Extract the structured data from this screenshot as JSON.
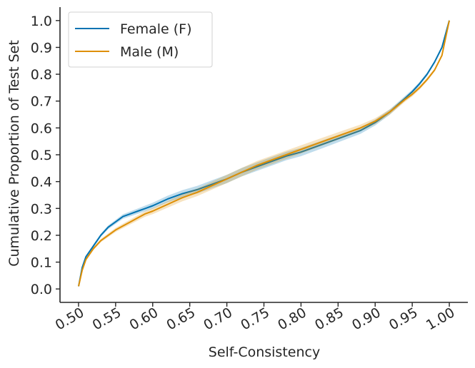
{
  "chart_data": {
    "type": "line",
    "title": "",
    "xlabel": "Self-Consistency",
    "ylabel": "Cumulative Proportion of Test Set",
    "xlim": [
      0.475,
      1.025
    ],
    "ylim": [
      -0.05,
      1.05
    ],
    "xticks": [
      0.5,
      0.55,
      0.6,
      0.65,
      0.7,
      0.75,
      0.8,
      0.85,
      0.9,
      0.95,
      1.0
    ],
    "xtick_labels": [
      "0.50",
      "0.55",
      "0.60",
      "0.65",
      "0.70",
      "0.75",
      "0.80",
      "0.85",
      "0.90",
      "0.95",
      "1.00"
    ],
    "yticks": [
      0.0,
      0.1,
      0.2,
      0.3,
      0.4,
      0.5,
      0.6,
      0.7,
      0.8,
      0.9,
      1.0
    ],
    "ytick_labels": [
      "0.0",
      "0.1",
      "0.2",
      "0.3",
      "0.4",
      "0.5",
      "0.6",
      "0.7",
      "0.8",
      "0.9",
      "1.0"
    ],
    "grid": false,
    "legend_position": "top-left",
    "series": [
      {
        "name": "Female (F)",
        "color": "#0173b2",
        "band_color": "#0173b2",
        "x": [
          0.5,
          0.505,
          0.51,
          0.52,
          0.53,
          0.54,
          0.55,
          0.56,
          0.57,
          0.58,
          0.59,
          0.6,
          0.62,
          0.64,
          0.66,
          0.68,
          0.7,
          0.72,
          0.74,
          0.76,
          0.78,
          0.8,
          0.82,
          0.84,
          0.86,
          0.88,
          0.9,
          0.92,
          0.94,
          0.95,
          0.96,
          0.97,
          0.98,
          0.99,
          1.0
        ],
        "y": [
          0.01,
          0.08,
          0.12,
          0.16,
          0.2,
          0.23,
          0.25,
          0.27,
          0.28,
          0.29,
          0.3,
          0.31,
          0.335,
          0.355,
          0.37,
          0.39,
          0.41,
          0.435,
          0.455,
          0.475,
          0.495,
          0.51,
          0.53,
          0.55,
          0.57,
          0.59,
          0.62,
          0.66,
          0.71,
          0.735,
          0.765,
          0.8,
          0.845,
          0.9,
          1.0
        ]
      },
      {
        "name": "Male (M)",
        "color": "#de8f05",
        "band_color": "#de8f05",
        "x": [
          0.5,
          0.505,
          0.51,
          0.52,
          0.53,
          0.54,
          0.55,
          0.56,
          0.57,
          0.58,
          0.59,
          0.6,
          0.62,
          0.64,
          0.66,
          0.68,
          0.7,
          0.72,
          0.74,
          0.76,
          0.78,
          0.8,
          0.82,
          0.84,
          0.86,
          0.88,
          0.9,
          0.92,
          0.94,
          0.95,
          0.96,
          0.97,
          0.98,
          0.99,
          1.0
        ],
        "y": [
          0.01,
          0.07,
          0.11,
          0.15,
          0.18,
          0.2,
          0.22,
          0.235,
          0.25,
          0.265,
          0.28,
          0.29,
          0.315,
          0.34,
          0.36,
          0.385,
          0.41,
          0.435,
          0.46,
          0.48,
          0.5,
          0.52,
          0.54,
          0.56,
          0.58,
          0.6,
          0.625,
          0.66,
          0.705,
          0.725,
          0.75,
          0.78,
          0.815,
          0.87,
          1.0
        ]
      }
    ]
  }
}
